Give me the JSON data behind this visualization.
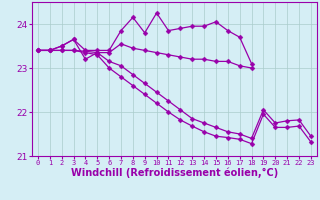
{
  "xlabel": "Windchill (Refroidissement éolien,°C)",
  "x": [
    0,
    1,
    2,
    3,
    4,
    5,
    6,
    7,
    8,
    9,
    10,
    11,
    12,
    13,
    14,
    15,
    16,
    17,
    18,
    19,
    20,
    21,
    22,
    23
  ],
  "line1": [
    23.4,
    23.4,
    23.5,
    23.65,
    23.4,
    23.4,
    23.4,
    23.85,
    24.15,
    23.8,
    24.25,
    23.85,
    23.9,
    23.95,
    23.95,
    24.05,
    23.85,
    23.7,
    23.1,
    null,
    null,
    null,
    null,
    null
  ],
  "line2": [
    23.4,
    23.4,
    23.5,
    23.65,
    23.2,
    23.35,
    23.35,
    23.55,
    23.45,
    23.4,
    23.35,
    23.3,
    23.25,
    23.2,
    23.2,
    23.15,
    23.15,
    23.05,
    23.0,
    null,
    null,
    null,
    null,
    null
  ],
  "line3": [
    23.4,
    23.4,
    23.4,
    23.4,
    23.38,
    23.35,
    23.15,
    23.05,
    22.85,
    22.65,
    22.45,
    22.25,
    22.05,
    21.85,
    21.75,
    21.65,
    21.55,
    21.5,
    21.4,
    22.05,
    21.75,
    21.8,
    21.82,
    21.45
  ],
  "line4": [
    23.4,
    23.4,
    23.4,
    23.4,
    23.35,
    23.3,
    23.0,
    22.8,
    22.6,
    22.4,
    22.2,
    22.0,
    21.82,
    21.68,
    21.55,
    21.45,
    21.42,
    21.38,
    21.28,
    21.95,
    21.65,
    21.65,
    21.68,
    21.32
  ],
  "line_color": "#9900aa",
  "marker": "D",
  "markersize": 2.5,
  "bg_color": "#d5eef5",
  "grid_color": "#aacccc",
  "ylim": [
    21.0,
    24.5
  ],
  "yticks": [
    21,
    22,
    23,
    24
  ],
  "xlabel_fontsize": 7,
  "tick_fontsize": 6.5
}
